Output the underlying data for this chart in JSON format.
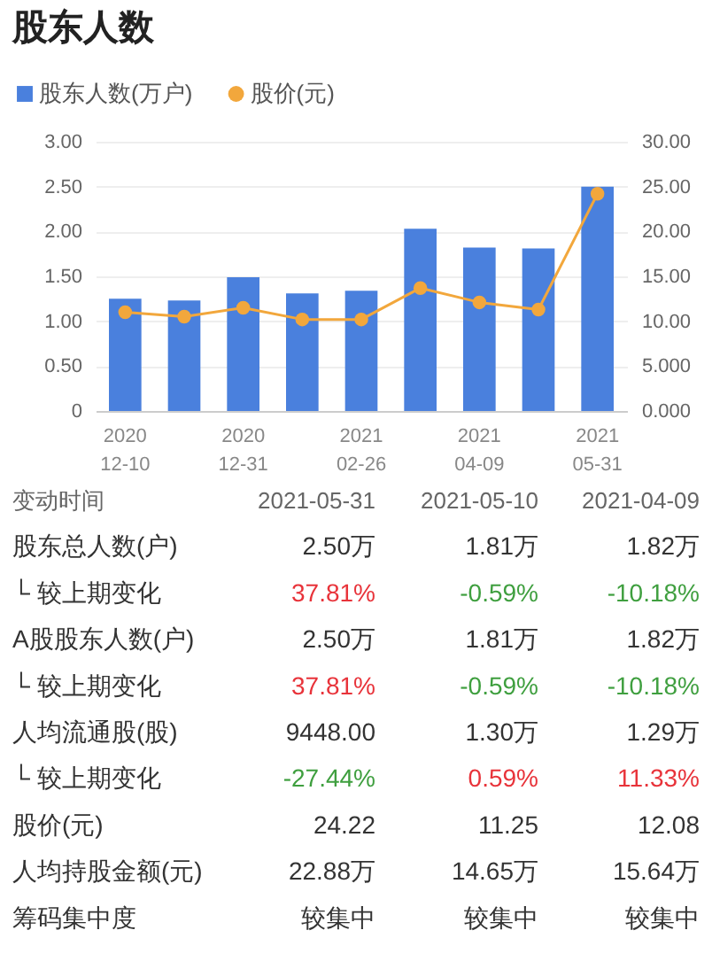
{
  "chart_data": [
    {
      "type": "bar",
      "title": "股东人数",
      "categories": [
        "2020\n12-10",
        null,
        "2020\n12-31",
        null,
        "2021\n02-26",
        null,
        "2021\n04-09",
        null,
        "2021\n05-31"
      ],
      "series": [
        {
          "name": "股东人数(万户)",
          "type": "bar",
          "color": "#4a80dd",
          "values": [
            1.25,
            1.23,
            1.49,
            1.31,
            1.34,
            2.03,
            1.82,
            1.81,
            2.5
          ]
        },
        {
          "name": "股价(元)",
          "type": "line",
          "axis": "y2",
          "color": "#f2a73c",
          "values": [
            11.0,
            10.5,
            11.5,
            10.2,
            10.2,
            13.7,
            12.1,
            11.3,
            24.2
          ]
        }
      ],
      "ylim": [
        0,
        3
      ],
      "yticks": [
        0,
        {
          "value": 0.5,
          "label": "0.50"
        },
        {
          "value": 1,
          "label": "1.00"
        },
        {
          "value": 1.5,
          "label": "1.50"
        },
        {
          "value": 2,
          "label": "2.00"
        },
        {
          "value": 2.5,
          "label": "2.50"
        },
        {
          "value": 3,
          "label": "3.00"
        }
      ],
      "y2lim": [
        0,
        30
      ],
      "y2ticks": [
        {
          "value": 0,
          "label": "0.000"
        },
        {
          "value": 5,
          "label": "5.000"
        },
        {
          "value": 10,
          "label": "10.00"
        },
        {
          "value": 15,
          "label": "15.00"
        },
        {
          "value": 20,
          "label": "20.00"
        },
        {
          "value": 25,
          "label": "25.00"
        },
        {
          "value": 30,
          "label": "30.00"
        }
      ],
      "grid": "y",
      "legend": "top left",
      "marker": "circle"
    },
    {
      "type": "other",
      "ylabel": "变动时间",
      "categories": [
        "2021-05-31",
        "2021-05-10",
        "2021-04-09"
      ],
      "y_categories": [
        "股东总人数(户)",
        "└ 较上期变化",
        "A股股东人数(户)",
        "└ 较上期变化",
        "人均流通股(股)",
        "└ 较上期变化",
        "股价(元)",
        "人均持股金额(元)",
        "筹码集中度"
      ],
      "cell_labels": [
        [
          "2.50万",
          "1.81万",
          "1.82万"
        ],
        [
          "37.81%",
          "-0.59%",
          "-10.18%"
        ],
        [
          "2.50万",
          "1.81万",
          "1.82万"
        ],
        [
          "37.81%",
          "-0.59%",
          "-10.18%"
        ],
        [
          "9448.00",
          "1.30万",
          "1.29万"
        ],
        [
          "-27.44%",
          "0.59%",
          "11.33%"
        ],
        [
          "24.22",
          "11.25",
          "12.08"
        ],
        [
          "22.88万",
          "14.65万",
          "15.64万"
        ],
        [
          "较集中",
          "较集中",
          "较集中"
        ]
      ],
      "colors": [
        [
          "#333333",
          "#333333",
          "#333333"
        ],
        [
          "#e8333a",
          "#3f9f3f",
          "#3f9f3f"
        ],
        [
          "#333333",
          "#333333",
          "#333333"
        ],
        [
          "#e8333a",
          "#3f9f3f",
          "#3f9f3f"
        ],
        [
          "#333333",
          "#333333",
          "#333333"
        ],
        [
          "#3f9f3f",
          "#e8333a",
          "#e8333a"
        ],
        [
          "#333333",
          "#333333",
          "#333333"
        ],
        [
          "#333333",
          "#333333",
          "#333333"
        ],
        [
          "#333333",
          "#333333",
          "#333333"
        ]
      ]
    }
  ]
}
